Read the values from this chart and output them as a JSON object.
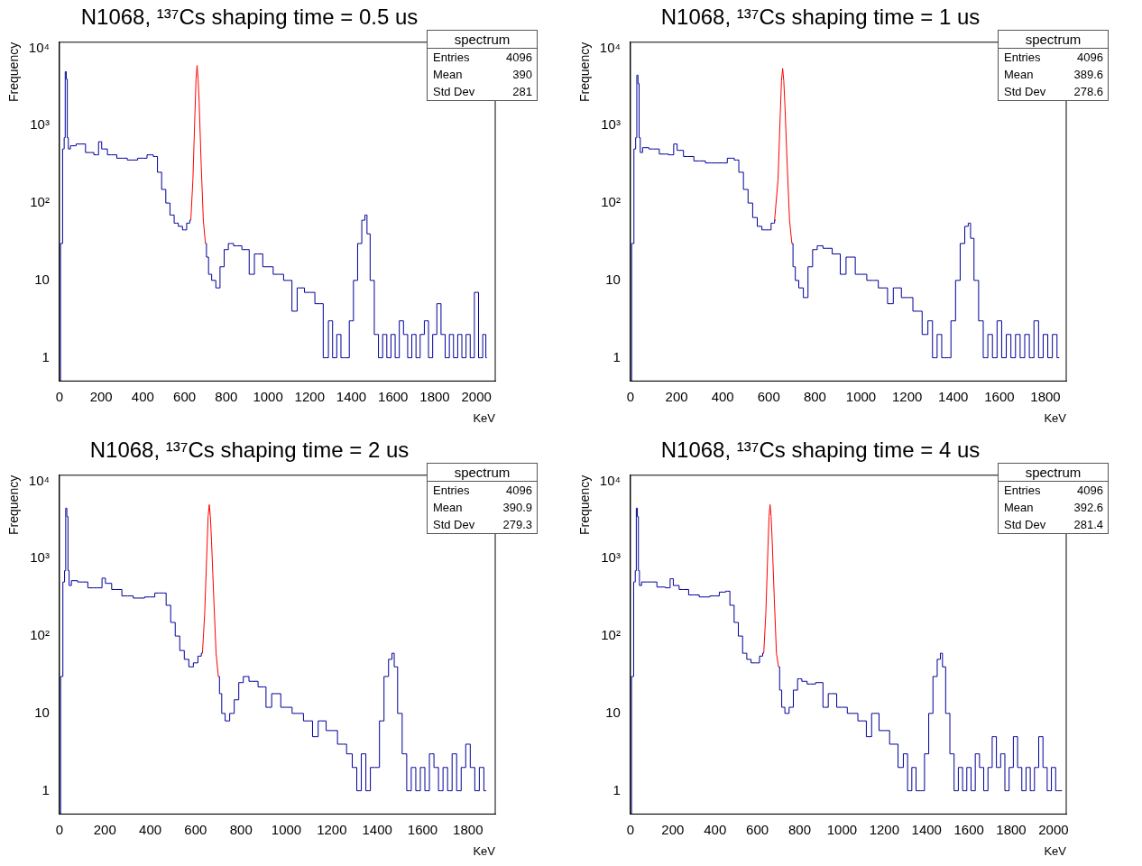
{
  "chart_data": [
    {
      "type": "step",
      "title": "N1068, ¹³⁷Cs shaping time = 0.5 us",
      "xlabel": "KeV",
      "ylabel": "Frequency",
      "log": "y",
      "grid": false,
      "legend": false,
      "marker": "none",
      "xlim": [
        0,
        2090
      ],
      "xticks": [
        0,
        200,
        400,
        600,
        800,
        1000,
        1200,
        1400,
        1600,
        1800,
        2000
      ],
      "ylim": [
        0.5,
        12000
      ],
      "yticks": [
        {
          "value": 1,
          "label": "1"
        },
        {
          "value": 10,
          "label": "10"
        },
        {
          "value": 100,
          "label": "10²"
        },
        {
          "value": 1000,
          "label": "10³"
        },
        {
          "value": 10000,
          "label": "10⁴"
        }
      ],
      "annotations": [
        "spectrum",
        "Entries",
        "4096",
        "Mean",
        "390",
        "Std Dev",
        "281"
      ],
      "series": [
        {
          "type": "step",
          "color": "#000099",
          "x": [
            0,
            10,
            20,
            25,
            30,
            35,
            40,
            45,
            60,
            100,
            150,
            180,
            195,
            210,
            250,
            300,
            350,
            400,
            440,
            460,
            480,
            500,
            520,
            540,
            560,
            580,
            600,
            620,
            630,
            640,
            700,
            710,
            720,
            740,
            760,
            780,
            800,
            820,
            850,
            900,
            920,
            950,
            1000,
            1050,
            1100,
            1130,
            1150,
            1200,
            1250,
            1280,
            1300,
            1320,
            1340,
            1360,
            1380,
            1400,
            1420,
            1440,
            1460,
            1470,
            1480,
            1500,
            1520,
            1540,
            1560,
            1580,
            1600,
            1620,
            1640,
            1660,
            1680,
            1700,
            1720,
            1740,
            1760,
            1780,
            1800,
            1820,
            1840,
            1860,
            1880,
            1900,
            1920,
            1940,
            1960,
            1980,
            2000,
            2020,
            2040,
            2050
          ],
          "values": [
            0.5,
            30,
            500,
            700,
            5000,
            4000,
            700,
            500,
            550,
            580,
            450,
            420,
            620,
            500,
            420,
            380,
            360,
            380,
            420,
            400,
            250,
            150,
            100,
            70,
            55,
            50,
            45,
            55,
            60,
            null,
            30,
            20,
            12,
            10,
            8,
            15,
            25,
            30,
            28,
            25,
            12,
            22,
            15,
            12,
            10,
            4,
            8,
            7,
            5,
            1,
            3,
            1,
            2,
            1,
            1,
            3,
            10,
            30,
            60,
            70,
            40,
            10,
            2,
            1,
            2,
            1,
            2,
            1,
            3,
            2,
            1,
            2,
            1,
            2,
            3,
            1,
            2,
            5,
            2,
            1,
            2,
            1,
            2,
            1,
            2,
            1,
            7,
            1,
            2,
            1
          ]
        },
        {
          "type": "line",
          "color": "#ff0000",
          "x": [
            630,
            640,
            650,
            655,
            660,
            665,
            670,
            680,
            690,
            700
          ],
          "values": [
            60,
            200,
            1500,
            4000,
            6000,
            4000,
            2000,
            300,
            60,
            30
          ]
        }
      ]
    },
    {
      "type": "step",
      "title": "N1068, ¹³⁷Cs shaping time = 1 us",
      "xlabel": "KeV",
      "ylabel": "Frequency",
      "log": "y",
      "grid": false,
      "legend": false,
      "marker": "none",
      "xlim": [
        0,
        1890
      ],
      "xticks": [
        0,
        200,
        400,
        600,
        800,
        1000,
        1200,
        1400,
        1600,
        1800
      ],
      "ylim": [
        0.5,
        12000
      ],
      "yticks": [
        {
          "value": 1,
          "label": "1"
        },
        {
          "value": 10,
          "label": "10"
        },
        {
          "value": 100,
          "label": "10²"
        },
        {
          "value": 1000,
          "label": "10³"
        },
        {
          "value": 10000,
          "label": "10⁴"
        }
      ],
      "annotations": [
        "spectrum",
        "Entries",
        "4096",
        "Mean",
        "389.6",
        "Std Dev",
        "278.6"
      ],
      "series": [
        {
          "type": "step",
          "color": "#000099",
          "x": [
            0,
            10,
            20,
            25,
            30,
            35,
            40,
            45,
            60,
            100,
            150,
            180,
            195,
            210,
            250,
            300,
            350,
            400,
            440,
            460,
            480,
            500,
            520,
            540,
            560,
            580,
            600,
            620,
            630,
            640,
            700,
            710,
            720,
            740,
            760,
            780,
            800,
            820,
            850,
            900,
            920,
            950,
            1000,
            1050,
            1100,
            1130,
            1150,
            1200,
            1250,
            1280,
            1300,
            1320,
            1340,
            1360,
            1380,
            1400,
            1420,
            1440,
            1460,
            1470,
            1480,
            1500,
            1520,
            1540,
            1560,
            1580,
            1600,
            1620,
            1640,
            1660,
            1680,
            1700,
            1720,
            1740,
            1760,
            1780,
            1800,
            1820,
            1840,
            1860
          ],
          "values": [
            0.5,
            30,
            500,
            700,
            4500,
            3500,
            700,
            450,
            520,
            500,
            430,
            420,
            580,
            480,
            400,
            350,
            330,
            330,
            380,
            360,
            250,
            150,
            100,
            65,
            50,
            45,
            45,
            55,
            60,
            null,
            30,
            15,
            10,
            8,
            6,
            15,
            25,
            28,
            26,
            22,
            12,
            20,
            12,
            10,
            8,
            5,
            8,
            6,
            4,
            2,
            3,
            1,
            2,
            1,
            1,
            3,
            10,
            30,
            50,
            55,
            35,
            10,
            3,
            1,
            2,
            1,
            3,
            1,
            2,
            1,
            2,
            1,
            2,
            1,
            3,
            1,
            2,
            1,
            2,
            1
          ]
        },
        {
          "type": "line",
          "color": "#ff0000",
          "x": [
            625,
            640,
            650,
            655,
            660,
            665,
            670,
            680,
            690,
            700
          ],
          "values": [
            60,
            200,
            1500,
            3800,
            5500,
            3800,
            1800,
            300,
            60,
            30
          ]
        }
      ]
    },
    {
      "type": "step",
      "title": "N1068, ¹³⁷Cs shaping time = 2 us",
      "xlabel": "KeV",
      "ylabel": "Frequency",
      "log": "y",
      "grid": false,
      "legend": false,
      "marker": "none",
      "xlim": [
        0,
        1920
      ],
      "xticks": [
        0,
        200,
        400,
        600,
        800,
        1000,
        1200,
        1400,
        1600,
        1800
      ],
      "ylim": [
        0.5,
        12000
      ],
      "yticks": [
        {
          "value": 1,
          "label": "1"
        },
        {
          "value": 10,
          "label": "10"
        },
        {
          "value": 100,
          "label": "10²"
        },
        {
          "value": 1000,
          "label": "10³"
        },
        {
          "value": 10000,
          "label": "10⁴"
        }
      ],
      "annotations": [
        "spectrum",
        "Entries",
        "4096",
        "Mean",
        "390.9",
        "Std Dev",
        "279.3"
      ],
      "series": [
        {
          "type": "step",
          "color": "#000099",
          "x": [
            0,
            10,
            20,
            25,
            30,
            35,
            40,
            45,
            60,
            100,
            150,
            180,
            195,
            210,
            250,
            300,
            350,
            400,
            440,
            460,
            480,
            500,
            520,
            540,
            560,
            580,
            600,
            620,
            630,
            640,
            700,
            710,
            720,
            740,
            760,
            780,
            800,
            820,
            850,
            900,
            920,
            950,
            1000,
            1050,
            1100,
            1130,
            1150,
            1200,
            1250,
            1280,
            1300,
            1320,
            1340,
            1360,
            1380,
            1400,
            1420,
            1440,
            1460,
            1470,
            1480,
            1500,
            1520,
            1540,
            1560,
            1580,
            1600,
            1620,
            1640,
            1660,
            1680,
            1700,
            1720,
            1740,
            1760,
            1780,
            1800,
            1820,
            1840,
            1860,
            1880
          ],
          "values": [
            0.5,
            30,
            500,
            700,
            4500,
            3500,
            700,
            450,
            520,
            500,
            420,
            420,
            560,
            480,
            400,
            330,
            310,
            320,
            360,
            360,
            250,
            150,
            100,
            65,
            50,
            40,
            45,
            55,
            60,
            null,
            30,
            18,
            10,
            8,
            10,
            15,
            25,
            30,
            26,
            22,
            12,
            18,
            12,
            10,
            8,
            5,
            8,
            6,
            4,
            3,
            2,
            1,
            3,
            1,
            2,
            2,
            8,
            30,
            50,
            60,
            40,
            10,
            3,
            1,
            2,
            1,
            2,
            1,
            3,
            2,
            1,
            2,
            1,
            3,
            1,
            2,
            4,
            2,
            1,
            2,
            1
          ]
        },
        {
          "type": "line",
          "color": "#ff0000",
          "x": [
            630,
            640,
            650,
            655,
            660,
            665,
            670,
            680,
            690,
            700
          ],
          "values": [
            60,
            200,
            1400,
            3500,
            5000,
            3500,
            1700,
            300,
            60,
            30
          ]
        }
      ]
    },
    {
      "type": "step",
      "title": "N1068, ¹³⁷Cs shaping time = 4 us",
      "xlabel": "KeV",
      "ylabel": "Frequency",
      "log": "y",
      "grid": false,
      "legend": false,
      "marker": "none",
      "xlim": [
        0,
        2060
      ],
      "xticks": [
        0,
        200,
        400,
        600,
        800,
        1000,
        1200,
        1400,
        1600,
        1800,
        2000
      ],
      "ylim": [
        0.5,
        12000
      ],
      "yticks": [
        {
          "value": 1,
          "label": "1"
        },
        {
          "value": 10,
          "label": "10"
        },
        {
          "value": 100,
          "label": "10²"
        },
        {
          "value": 1000,
          "label": "10³"
        },
        {
          "value": 10000,
          "label": "10⁴"
        }
      ],
      "annotations": [
        "spectrum",
        "Entries",
        "4096",
        "Mean",
        "392.6",
        "Std Dev",
        "281.4"
      ],
      "series": [
        {
          "type": "step",
          "color": "#000099",
          "x": [
            0,
            10,
            20,
            25,
            30,
            35,
            40,
            45,
            60,
            100,
            150,
            180,
            195,
            210,
            250,
            300,
            350,
            400,
            440,
            460,
            480,
            500,
            520,
            540,
            560,
            580,
            600,
            620,
            630,
            640,
            700,
            710,
            720,
            740,
            760,
            780,
            800,
            820,
            850,
            900,
            920,
            950,
            1000,
            1050,
            1100,
            1130,
            1150,
            1200,
            1250,
            1280,
            1300,
            1320,
            1340,
            1360,
            1380,
            1400,
            1420,
            1440,
            1460,
            1470,
            1480,
            1500,
            1520,
            1540,
            1560,
            1580,
            1600,
            1620,
            1640,
            1660,
            1680,
            1700,
            1720,
            1740,
            1760,
            1780,
            1800,
            1820,
            1840,
            1860,
            1880,
            1900,
            1920,
            1940,
            1960,
            1980,
            2000,
            2020,
            2040
          ],
          "values": [
            0.5,
            30,
            500,
            700,
            4500,
            3500,
            700,
            450,
            500,
            500,
            430,
            420,
            550,
            450,
            400,
            340,
            320,
            330,
            370,
            380,
            250,
            150,
            100,
            60,
            50,
            45,
            45,
            55,
            60,
            null,
            40,
            20,
            12,
            10,
            12,
            20,
            28,
            26,
            24,
            25,
            12,
            18,
            12,
            10,
            8,
            5,
            10,
            6,
            4,
            2,
            3,
            1,
            2,
            1,
            1,
            3,
            10,
            30,
            50,
            60,
            40,
            10,
            3,
            1,
            2,
            1,
            2,
            1,
            3,
            2,
            1,
            2,
            5,
            2,
            3,
            1,
            2,
            5,
            2,
            1,
            2,
            1,
            2,
            5,
            2,
            1,
            2,
            1,
            1
          ]
        },
        {
          "type": "line",
          "color": "#ff0000",
          "x": [
            630,
            640,
            650,
            655,
            660,
            665,
            670,
            680,
            690,
            700
          ],
          "values": [
            60,
            200,
            1400,
            3500,
            5000,
            3500,
            1700,
            300,
            60,
            40
          ]
        }
      ]
    }
  ]
}
